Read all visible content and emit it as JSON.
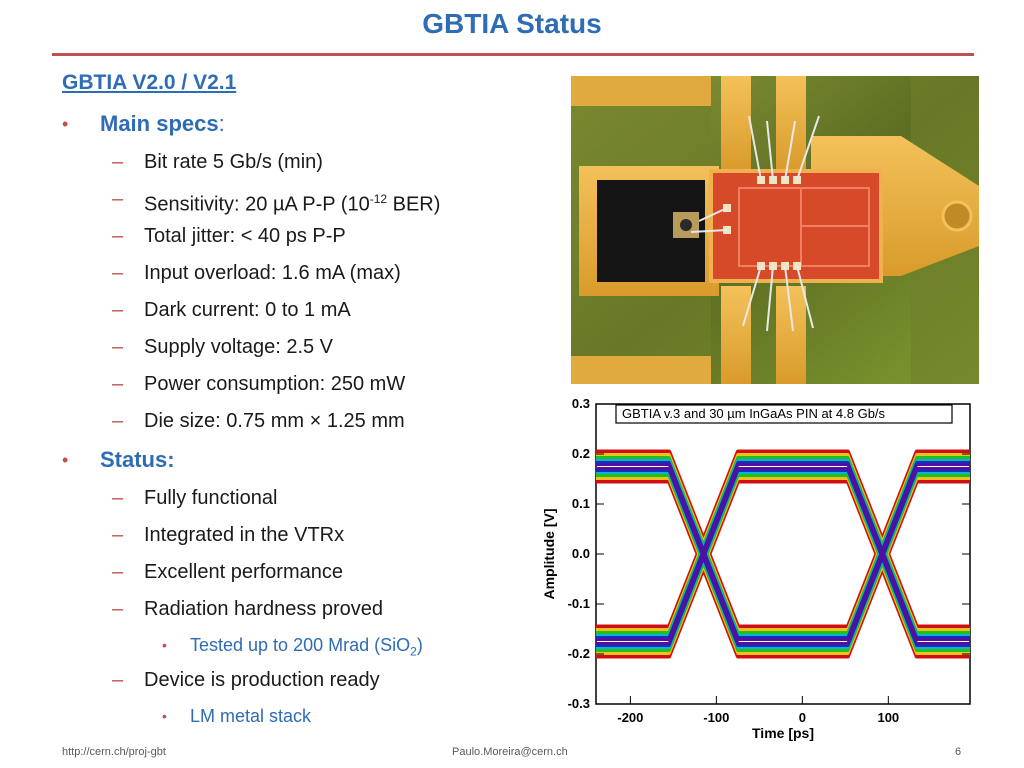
{
  "slide": {
    "title": "GBTIA Status",
    "section_heading": "GBTIA V2.0 / V2.1",
    "main_specs": {
      "label": "Main specs",
      "colon": ":",
      "items": [
        "Bit rate 5 Gb/s (min)",
        "Sensitivity: 20 µA P-P (10",
        "Total jitter: < 40 ps P-P",
        "Input overload: 1.6 mA (max)",
        "Dark current: 0 to 1 mA",
        "Supply voltage: 2.5 V",
        "Power consumption: 250 mW",
        "Die size: 0.75 mm × 1.25 mm"
      ],
      "sensitivity_exp": "-12",
      "sensitivity_suffix": " BER)"
    },
    "status": {
      "label": "Status:",
      "items": [
        "Fully functional",
        "Integrated in the VTRx",
        "Excellent performance",
        "Radiation hardness proved"
      ],
      "radiation_sub": "Tested up to 200 Mrad (SiO",
      "radiation_sub_index": "2",
      "radiation_sub_end": ")",
      "production": "Device is production ready",
      "production_sub": "LM metal stack"
    }
  },
  "footer": {
    "left": "http://cern.ch/proj-gbt",
    "center": "Paulo.Moreira@cern.ch",
    "page": "6"
  },
  "colors": {
    "accent_blue": "#2e6cb5",
    "accent_red": "#c0504d"
  },
  "chart_data": {
    "type": "line",
    "title": "GBTIA v.3 and 30 µm InGaAs PIN at 4.8 Gb/s",
    "xlabel": "Time [ps]",
    "ylabel": "Amplitude [V]",
    "xlim": [
      -240,
      195
    ],
    "ylim": [
      -0.3,
      0.3
    ],
    "xticks": [
      -200,
      -100,
      0,
      100
    ],
    "yticks": [
      -0.3,
      -0.2,
      -0.1,
      0.0,
      0.1,
      0.2,
      0.3
    ],
    "xtick_labels": [
      "-200",
      "-100",
      "0",
      "100"
    ],
    "ytick_labels": [
      "-0.3",
      "-0.2",
      "-0.1",
      "0.0",
      "0.1",
      "0.2",
      "0.3"
    ],
    "eye": {
      "high_level": 0.175,
      "low_level": -0.175,
      "crossings": [
        -115,
        93
      ],
      "rise_fall_ps": 40
    }
  }
}
